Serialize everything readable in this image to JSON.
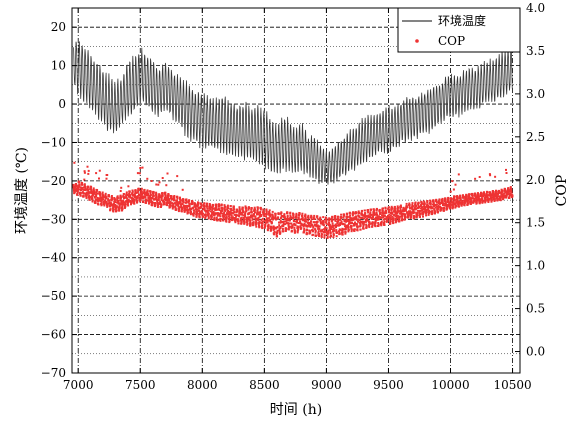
{
  "chart_data": {
    "type": "line",
    "xlabel": "时间 (h)",
    "ylabel_left": "环境温度 (℃)",
    "ylabel_right": "COP",
    "xlim": [
      6950,
      10560
    ],
    "ylim_left": [
      -70,
      25
    ],
    "ylim_right": [
      -0.25,
      4.0
    ],
    "x_ticks": [
      7000,
      7500,
      8000,
      8500,
      9000,
      9500,
      10000,
      10500
    ],
    "y_left_ticks": [
      20,
      10,
      0,
      -10,
      -20,
      -30,
      -40,
      -50,
      -60,
      -70
    ],
    "y_right_ticks": [
      4.0,
      3.5,
      3.0,
      2.5,
      2.0,
      1.5,
      1.0,
      0.5,
      0.0
    ],
    "grid": true,
    "legend_position": "top-right",
    "series": [
      {
        "name": "环境温度",
        "axis": "left",
        "style": "line",
        "color": "#3a3a3a",
        "x": [
          6960,
          7000,
          7050,
          7100,
          7150,
          7200,
          7250,
          7300,
          7350,
          7400,
          7450,
          7500,
          7550,
          7600,
          7650,
          7700,
          7750,
          7800,
          7850,
          7900,
          7950,
          8000,
          8050,
          8100,
          8150,
          8200,
          8250,
          8300,
          8350,
          8400,
          8450,
          8500,
          8550,
          8600,
          8650,
          8700,
          8750,
          8800,
          8850,
          8900,
          8950,
          9000,
          9050,
          9100,
          9150,
          9200,
          9250,
          9300,
          9350,
          9400,
          9450,
          9500,
          9550,
          9600,
          9650,
          9700,
          9750,
          9800,
          9850,
          9900,
          9950,
          10000,
          10050,
          10100,
          10150,
          10200,
          10250,
          10300,
          10350,
          10400,
          10450,
          10500
        ],
        "high": [
          16,
          18,
          16,
          14,
          12,
          10,
          8,
          6,
          8,
          12,
          13,
          15,
          14,
          12,
          10,
          12,
          10,
          8,
          7,
          6,
          4,
          4,
          3,
          2,
          3,
          2,
          1,
          0,
          1,
          -1,
          0,
          -1,
          -3,
          -5,
          -2,
          -3,
          -6,
          -4,
          -8,
          -8,
          -10,
          -12,
          -11,
          -9,
          -8,
          -6,
          -5,
          -3,
          -2,
          -2,
          -1,
          0,
          0,
          1,
          2,
          2,
          3,
          4,
          5,
          5,
          7,
          8,
          8,
          9,
          10,
          10,
          11,
          12,
          12,
          14,
          15,
          16
        ],
        "low": [
          4,
          2,
          0,
          -2,
          -4,
          -6,
          -8,
          -8,
          -6,
          -4,
          -3,
          0,
          -1,
          -3,
          -4,
          -2,
          -4,
          -6,
          -8,
          -10,
          -11,
          -12,
          -12,
          -13,
          -13,
          -14,
          -14,
          -14,
          -15,
          -15,
          -16,
          -17,
          -18,
          -19,
          -18,
          -18,
          -19,
          -18,
          -19,
          -20,
          -21,
          -21,
          -21,
          -20,
          -19,
          -18,
          -17,
          -16,
          -15,
          -14,
          -13,
          -13,
          -12,
          -11,
          -10,
          -10,
          -9,
          -8,
          -8,
          -6,
          -5,
          -4,
          -4,
          -3,
          -2,
          -2,
          -1,
          0,
          0,
          1,
          2,
          3
        ]
      },
      {
        "name": "COP",
        "axis": "right",
        "style": "points",
        "color": "#ee3333",
        "x": [
          6960,
          7000,
          7050,
          7100,
          7150,
          7200,
          7250,
          7300,
          7350,
          7400,
          7450,
          7500,
          7550,
          7600,
          7650,
          7700,
          7750,
          7800,
          7850,
          7900,
          7950,
          8000,
          8050,
          8100,
          8150,
          8200,
          8250,
          8300,
          8350,
          8400,
          8450,
          8500,
          8550,
          8600,
          8650,
          8700,
          8750,
          8800,
          8850,
          8900,
          8950,
          9000,
          9050,
          9100,
          9150,
          9200,
          9250,
          9300,
          9350,
          9400,
          9450,
          9500,
          9550,
          9600,
          9650,
          9700,
          9750,
          9800,
          9850,
          9900,
          9950,
          10000,
          10050,
          10100,
          10150,
          10200,
          10250,
          10300,
          10350,
          10400,
          10450,
          10500
        ],
        "high": [
          1.95,
          1.98,
          1.95,
          1.92,
          1.88,
          1.85,
          1.82,
          1.8,
          1.82,
          1.86,
          1.88,
          1.9,
          1.88,
          1.86,
          1.84,
          1.85,
          1.82,
          1.8,
          1.78,
          1.76,
          1.74,
          1.73,
          1.72,
          1.71,
          1.72,
          1.7,
          1.69,
          1.68,
          1.69,
          1.67,
          1.68,
          1.66,
          1.64,
          1.6,
          1.63,
          1.62,
          1.6,
          1.62,
          1.58,
          1.58,
          1.57,
          1.56,
          1.57,
          1.59,
          1.6,
          1.62,
          1.63,
          1.64,
          1.65,
          1.66,
          1.67,
          1.68,
          1.69,
          1.7,
          1.72,
          1.73,
          1.74,
          1.75,
          1.76,
          1.77,
          1.78,
          1.8,
          1.81,
          1.82,
          1.83,
          1.84,
          1.85,
          1.86,
          1.87,
          1.88,
          1.9,
          1.92
        ],
        "low": [
          1.85,
          1.82,
          1.8,
          1.76,
          1.72,
          1.69,
          1.65,
          1.62,
          1.64,
          1.7,
          1.72,
          1.75,
          1.73,
          1.7,
          1.68,
          1.69,
          1.67,
          1.64,
          1.62,
          1.6,
          1.57,
          1.56,
          1.55,
          1.53,
          1.52,
          1.51,
          1.5,
          1.49,
          1.48,
          1.46,
          1.45,
          1.43,
          1.4,
          1.34,
          1.4,
          1.41,
          1.38,
          1.4,
          1.36,
          1.35,
          1.34,
          1.32,
          1.33,
          1.35,
          1.37,
          1.4,
          1.41,
          1.43,
          1.45,
          1.46,
          1.47,
          1.48,
          1.5,
          1.52,
          1.54,
          1.55,
          1.56,
          1.58,
          1.6,
          1.62,
          1.64,
          1.66,
          1.68,
          1.7,
          1.71,
          1.72,
          1.73,
          1.74,
          1.75,
          1.76,
          1.78,
          1.8
        ]
      }
    ]
  }
}
